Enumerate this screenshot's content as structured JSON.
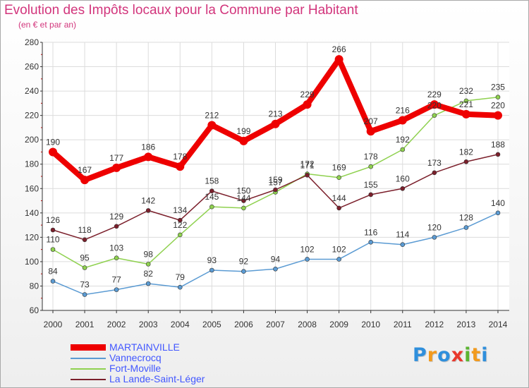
{
  "title": "Evolution des Impôts locaux pour la Commune par Habitant",
  "subtitle": "(en € et par an)",
  "logo": {
    "letters": [
      "P",
      "r",
      "o",
      "x",
      "i",
      "t",
      "i"
    ],
    "colors": [
      "#2f8fdc",
      "#f29a1d",
      "#2f8fdc",
      "#e9382b",
      "#5bb531",
      "#f29a1d",
      "#2f8fdc"
    ]
  },
  "chart_data": {
    "type": "line",
    "title": "Evolution des Impôts locaux pour la Commune par Habitant",
    "ylabel": "(en € et par an)",
    "xlabel": "",
    "categories": [
      "2000",
      "2001",
      "2002",
      "2003",
      "2004",
      "2005",
      "2006",
      "2007",
      "2008",
      "2009",
      "2010",
      "2011",
      "2012",
      "2013",
      "2014"
    ],
    "ylim": [
      60,
      280
    ],
    "yticks": [
      60,
      80,
      100,
      120,
      140,
      160,
      180,
      200,
      220,
      240,
      260,
      280
    ],
    "grid": true,
    "legend_position": "bottom-left",
    "series": [
      {
        "name": "MARTAINVILLE",
        "color": "#ee0000",
        "values": [
          190,
          167,
          177,
          186,
          178,
          212,
          199,
          213,
          229,
          266,
          207,
          216,
          229,
          221,
          220
        ]
      },
      {
        "name": "Vannecrocq",
        "color": "#5b9bd3",
        "values": [
          84,
          73,
          77,
          82,
          79,
          93,
          92,
          94,
          102,
          102,
          116,
          114,
          120,
          128,
          140
        ]
      },
      {
        "name": "Fort-Moville",
        "color": "#8fd14f",
        "values": [
          110,
          95,
          103,
          98,
          122,
          145,
          144,
          157,
          172,
          169,
          178,
          192,
          220,
          232,
          235
        ]
      },
      {
        "name": "La Lande-Saint-Léger",
        "color": "#7b1f2b",
        "values": [
          126,
          118,
          129,
          142,
          134,
          158,
          150,
          159,
          171,
          144,
          155,
          160,
          173,
          182,
          188
        ]
      }
    ]
  }
}
